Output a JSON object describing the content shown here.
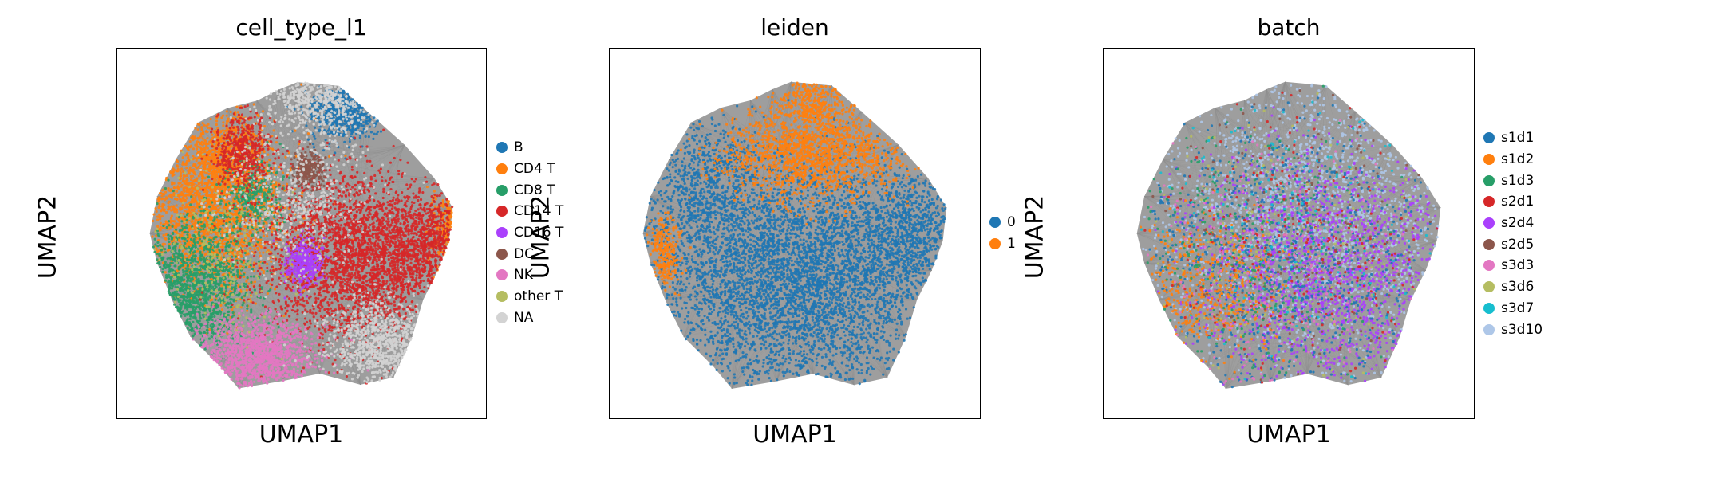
{
  "chart_data": [
    {
      "type": "scatter",
      "title": "cell_type_l1",
      "xlabel": "UMAP1",
      "ylabel": "UMAP2",
      "grid": false,
      "legend_position": "right",
      "legend": [
        {
          "label": "B",
          "color": "#1f77b4"
        },
        {
          "label": "CD4 T",
          "color": "#ff7f0e"
        },
        {
          "label": "CD8 T",
          "color": "#279e68"
        },
        {
          "label": "CD14 T",
          "color": "#d62728"
        },
        {
          "label": "CD16 T",
          "color": "#aa40fc"
        },
        {
          "label": "DC",
          "color": "#8c564b"
        },
        {
          "label": "NK",
          "color": "#e377c2"
        },
        {
          "label": "other T",
          "color": "#b5bd61"
        },
        {
          "label": "NA",
          "color": "#d3d3d3"
        }
      ],
      "regions": [
        {
          "category": "B",
          "cx": 0.62,
          "cy": 0.17,
          "sx": 0.05,
          "sy": 0.04,
          "weight": 4
        },
        {
          "category": "CD4 T",
          "cx": 0.26,
          "cy": 0.44,
          "sx": 0.1,
          "sy": 0.11,
          "weight": 14
        },
        {
          "category": "CD4 T",
          "cx": 0.3,
          "cy": 0.3,
          "sx": 0.05,
          "sy": 0.06,
          "weight": 4
        },
        {
          "category": "CD4 T",
          "cx": 0.9,
          "cy": 0.48,
          "sx": 0.03,
          "sy": 0.05,
          "weight": 2
        },
        {
          "category": "CD8 T",
          "cx": 0.21,
          "cy": 0.65,
          "sx": 0.07,
          "sy": 0.09,
          "weight": 9
        },
        {
          "category": "CD8 T",
          "cx": 0.37,
          "cy": 0.4,
          "sx": 0.04,
          "sy": 0.05,
          "weight": 2
        },
        {
          "category": "CD14 T",
          "cx": 0.66,
          "cy": 0.56,
          "sx": 0.13,
          "sy": 0.11,
          "weight": 18
        },
        {
          "category": "CD14 T",
          "cx": 0.34,
          "cy": 0.28,
          "sx": 0.04,
          "sy": 0.05,
          "weight": 3
        },
        {
          "category": "CD14 T",
          "cx": 0.85,
          "cy": 0.52,
          "sx": 0.05,
          "sy": 0.06,
          "weight": 3
        },
        {
          "category": "CD16 T",
          "cx": 0.51,
          "cy": 0.58,
          "sx": 0.025,
          "sy": 0.03,
          "weight": 2
        },
        {
          "category": "DC",
          "cx": 0.52,
          "cy": 0.33,
          "sx": 0.02,
          "sy": 0.025,
          "weight": 1.5
        },
        {
          "category": "NK",
          "cx": 0.38,
          "cy": 0.83,
          "sx": 0.08,
          "sy": 0.05,
          "weight": 8
        },
        {
          "category": "other T",
          "cx": 0.27,
          "cy": 0.55,
          "sx": 0.08,
          "sy": 0.1,
          "weight": 1.5
        },
        {
          "category": "NA",
          "cx": 0.55,
          "cy": 0.13,
          "sx": 0.07,
          "sy": 0.05,
          "weight": 4
        },
        {
          "category": "NA",
          "cx": 0.72,
          "cy": 0.8,
          "sx": 0.08,
          "sy": 0.06,
          "weight": 6
        },
        {
          "category": "NA",
          "cx": 0.48,
          "cy": 0.4,
          "sx": 0.1,
          "sy": 0.1,
          "weight": 3
        }
      ]
    },
    {
      "type": "scatter",
      "title": "leiden",
      "xlabel": "UMAP1",
      "ylabel": "UMAP2",
      "grid": false,
      "legend_position": "right",
      "legend": [
        {
          "label": "0",
          "color": "#1f77b4"
        },
        {
          "label": "1",
          "color": "#ff7f0e"
        }
      ],
      "regions": [
        {
          "category": "0",
          "cx": 0.5,
          "cy": 0.62,
          "sx": 0.2,
          "sy": 0.16,
          "weight": 30
        },
        {
          "category": "0",
          "cx": 0.26,
          "cy": 0.36,
          "sx": 0.08,
          "sy": 0.08,
          "weight": 4
        },
        {
          "category": "0",
          "cx": 0.82,
          "cy": 0.5,
          "sx": 0.08,
          "sy": 0.08,
          "weight": 5
        },
        {
          "category": "1",
          "cx": 0.55,
          "cy": 0.28,
          "sx": 0.12,
          "sy": 0.06,
          "weight": 9
        },
        {
          "category": "1",
          "cx": 0.55,
          "cy": 0.14,
          "sx": 0.05,
          "sy": 0.04,
          "weight": 2
        },
        {
          "category": "1",
          "cx": 0.15,
          "cy": 0.55,
          "sx": 0.02,
          "sy": 0.05,
          "weight": 1.5
        }
      ]
    },
    {
      "type": "scatter",
      "title": "batch",
      "xlabel": "UMAP1",
      "ylabel": "UMAP2",
      "grid": false,
      "legend_position": "right",
      "legend": [
        {
          "label": "s1d1",
          "color": "#1f77b4"
        },
        {
          "label": "s1d2",
          "color": "#ff7f0e"
        },
        {
          "label": "s1d3",
          "color": "#279e68"
        },
        {
          "label": "s2d1",
          "color": "#d62728"
        },
        {
          "label": "s2d4",
          "color": "#aa40fc"
        },
        {
          "label": "s2d5",
          "color": "#8c564b"
        },
        {
          "label": "s3d3",
          "color": "#e377c2"
        },
        {
          "label": "s3d6",
          "color": "#b5bd61"
        },
        {
          "label": "s3d7",
          "color": "#17becf"
        },
        {
          "label": "s3d10",
          "color": "#aec7e8"
        }
      ],
      "regions": [
        {
          "category": "s3d10",
          "cx": 0.55,
          "cy": 0.45,
          "sx": 0.22,
          "sy": 0.2,
          "weight": 14
        },
        {
          "category": "s2d4",
          "cx": 0.6,
          "cy": 0.6,
          "sx": 0.18,
          "sy": 0.16,
          "weight": 10
        },
        {
          "category": "s1d1",
          "cx": 0.45,
          "cy": 0.55,
          "sx": 0.22,
          "sy": 0.2,
          "weight": 6
        },
        {
          "category": "s1d2",
          "cx": 0.28,
          "cy": 0.65,
          "sx": 0.1,
          "sy": 0.1,
          "weight": 3
        },
        {
          "category": "s1d3",
          "cx": 0.4,
          "cy": 0.55,
          "sx": 0.18,
          "sy": 0.18,
          "weight": 2
        },
        {
          "category": "s2d1",
          "cx": 0.55,
          "cy": 0.55,
          "sx": 0.2,
          "sy": 0.18,
          "weight": 1.5
        },
        {
          "category": "s2d5",
          "cx": 0.5,
          "cy": 0.5,
          "sx": 0.2,
          "sy": 0.2,
          "weight": 1
        },
        {
          "category": "s3d3",
          "cx": 0.45,
          "cy": 0.6,
          "sx": 0.2,
          "sy": 0.18,
          "weight": 1.5
        },
        {
          "category": "s3d6",
          "cx": 0.5,
          "cy": 0.5,
          "sx": 0.2,
          "sy": 0.2,
          "weight": 1
        },
        {
          "category": "s3d7",
          "cx": 0.5,
          "cy": 0.5,
          "sx": 0.2,
          "sy": 0.2,
          "weight": 1
        }
      ]
    }
  ]
}
